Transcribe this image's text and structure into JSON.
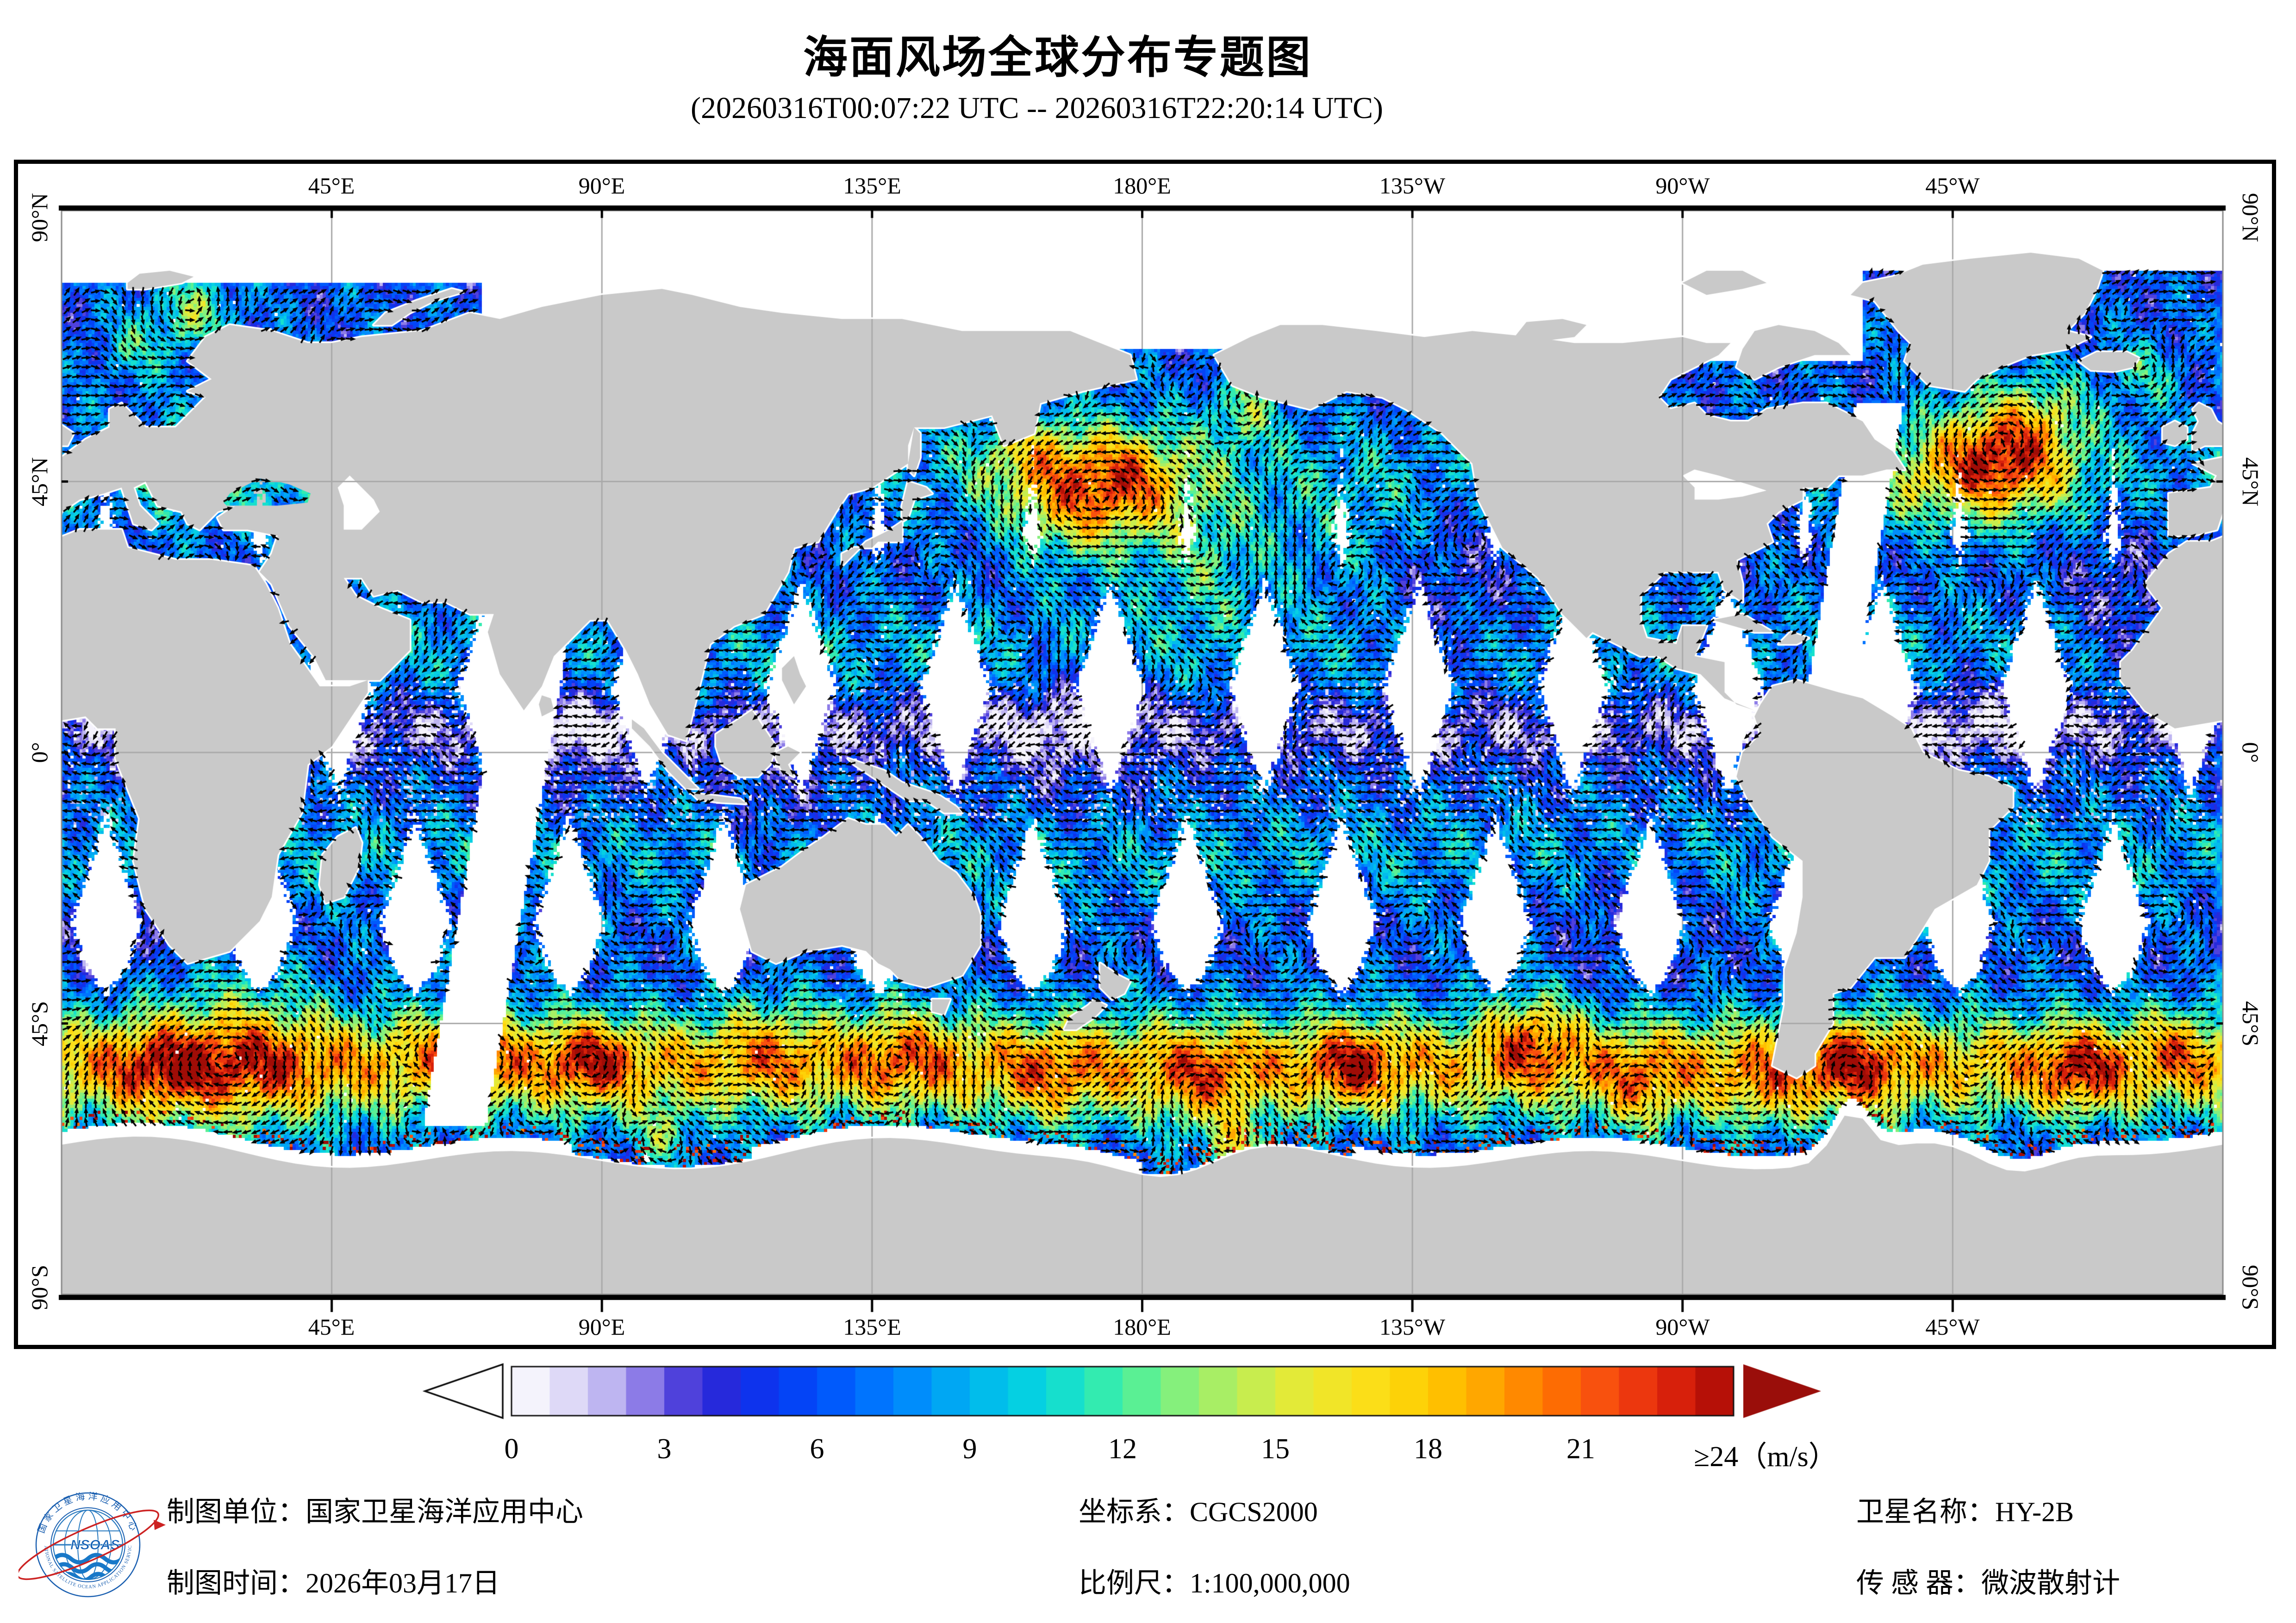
{
  "title": "海面风场全球分布专题图",
  "subtitle": "(20260316T00:07:22 UTC -- 20260316T22:20:14 UTC)",
  "map": {
    "lon_labels": [
      "45°E",
      "90°E",
      "135°E",
      "180°E",
      "135°W",
      "90°W",
      "45°W"
    ],
    "lat_labels": [
      "90°N",
      "45°N",
      "0°",
      "45°S",
      "90°S"
    ],
    "colors": {
      "land": "#c9c9c9",
      "gridline": "#a9a9a9",
      "no_data": "#ffffff",
      "arrow": "#000000",
      "border": "#000000"
    }
  },
  "colorbar": {
    "tick_labels": [
      "0",
      "3",
      "6",
      "9",
      "12",
      "15",
      "18",
      "21"
    ],
    "max_label": "≥24（m/s）",
    "unit": "m/s",
    "min": 0,
    "max": 24,
    "step": 3,
    "left_arrow_color": "#ffffff",
    "right_arrow_color": "#9a0e0a",
    "gradient": [
      [
        0,
        "#ffffff"
      ],
      [
        1,
        "#e4e0f8"
      ],
      [
        2,
        "#b9aff0"
      ],
      [
        2.6,
        "#8f7ee8"
      ],
      [
        3.2,
        "#5a48dd"
      ],
      [
        4,
        "#2a28d8"
      ],
      [
        5,
        "#0b35f0"
      ],
      [
        6,
        "#004dfb"
      ],
      [
        7.5,
        "#0081ff"
      ],
      [
        9,
        "#00b4f0"
      ],
      [
        10.2,
        "#06d2e2"
      ],
      [
        11.2,
        "#1fe6c3"
      ],
      [
        12,
        "#45f0a0"
      ],
      [
        13.2,
        "#8af07a"
      ],
      [
        14.4,
        "#c0ee55"
      ],
      [
        15.5,
        "#e8ea35"
      ],
      [
        16.8,
        "#fbe01a"
      ],
      [
        18,
        "#ffcc00"
      ],
      [
        19.2,
        "#ffa500"
      ],
      [
        20.4,
        "#ff7400"
      ],
      [
        21.5,
        "#f84d10"
      ],
      [
        22.5,
        "#e52a0e"
      ],
      [
        23.4,
        "#c41408"
      ],
      [
        24,
        "#a00c06"
      ]
    ]
  },
  "footer": {
    "fields": [
      {
        "label": "制图单位：",
        "value": "国家卫星海洋应用中心"
      },
      {
        "label": "制图时间：",
        "value": "2026年03月17日"
      },
      {
        "label": "坐标系：",
        "value": "CGCS2000"
      },
      {
        "label": "比例尺：",
        "value": "1:100,000,000"
      },
      {
        "label": "卫星名称：",
        "value": "HY-2B"
      },
      {
        "label": "传 感 器：",
        "value": "微波散射计"
      }
    ]
  },
  "logo": {
    "ring_text_top": "国家卫星海洋应用中心",
    "ring_text_bottom": "NATIONAL SATELLITE OCEAN APPLICATION SERVICE",
    "acronym": "NSOAS"
  },
  "chart_data": {
    "type": "heatmap",
    "title": "海面风场全球分布专题图",
    "time_range_utc": [
      "20260316T00:07:22",
      "20260316T22:20:14"
    ],
    "variable": "sea surface wind speed",
    "units": "m/s",
    "colorbar_ticks": [
      0,
      3,
      6,
      9,
      12,
      15,
      18,
      21,
      24
    ],
    "colorbar_max_open_ended": true,
    "lon_tick_labels": [
      "45°E",
      "90°E",
      "135°E",
      "180°E",
      "135°W",
      "90°W",
      "45°W"
    ],
    "lat_tick_labels": [
      "90°N",
      "45°N",
      "0°",
      "45°S",
      "90°S"
    ],
    "overlay": "wind direction arrows",
    "satellite": "HY-2B",
    "sensor": "微波散射计",
    "coordinate_system": "CGCS2000",
    "scale": "1:100,000,000",
    "produced_by": "国家卫星海洋应用中心",
    "produced_on": "2026年03月17日"
  }
}
